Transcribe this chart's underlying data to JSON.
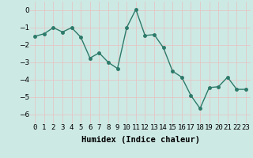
{
  "x": [
    0,
    1,
    2,
    3,
    4,
    5,
    6,
    7,
    8,
    9,
    10,
    11,
    12,
    13,
    14,
    15,
    16,
    17,
    18,
    19,
    20,
    21,
    22,
    23
  ],
  "y": [
    -1.5,
    -1.35,
    -1.0,
    -1.25,
    -1.0,
    -1.55,
    -2.75,
    -2.45,
    -3.0,
    -3.35,
    -1.0,
    0.05,
    -1.45,
    -1.4,
    -2.15,
    -3.5,
    -3.85,
    -4.9,
    -5.65,
    -4.45,
    -4.4,
    -3.85,
    -4.55,
    -4.55
  ],
  "line_color": "#2d7a6a",
  "bg_color": "#cde9e4",
  "grid_color": "#b8d8d4",
  "xlabel": "Humidex (Indice chaleur)",
  "ylim": [
    -6.5,
    0.5
  ],
  "xlim": [
    -0.5,
    23.5
  ],
  "yticks": [
    0,
    -1,
    -2,
    -3,
    -4,
    -5,
    -6
  ],
  "xtick_labels": [
    "0",
    "1",
    "2",
    "3",
    "4",
    "5",
    "6",
    "7",
    "8",
    "9",
    "10",
    "11",
    "12",
    "13",
    "14",
    "15",
    "16",
    "17",
    "18",
    "19",
    "20",
    "21",
    "22",
    "23"
  ],
  "xlabel_fontsize": 7.5,
  "tick_fontsize": 6.5,
  "marker_size": 2.5,
  "line_width": 1.0
}
